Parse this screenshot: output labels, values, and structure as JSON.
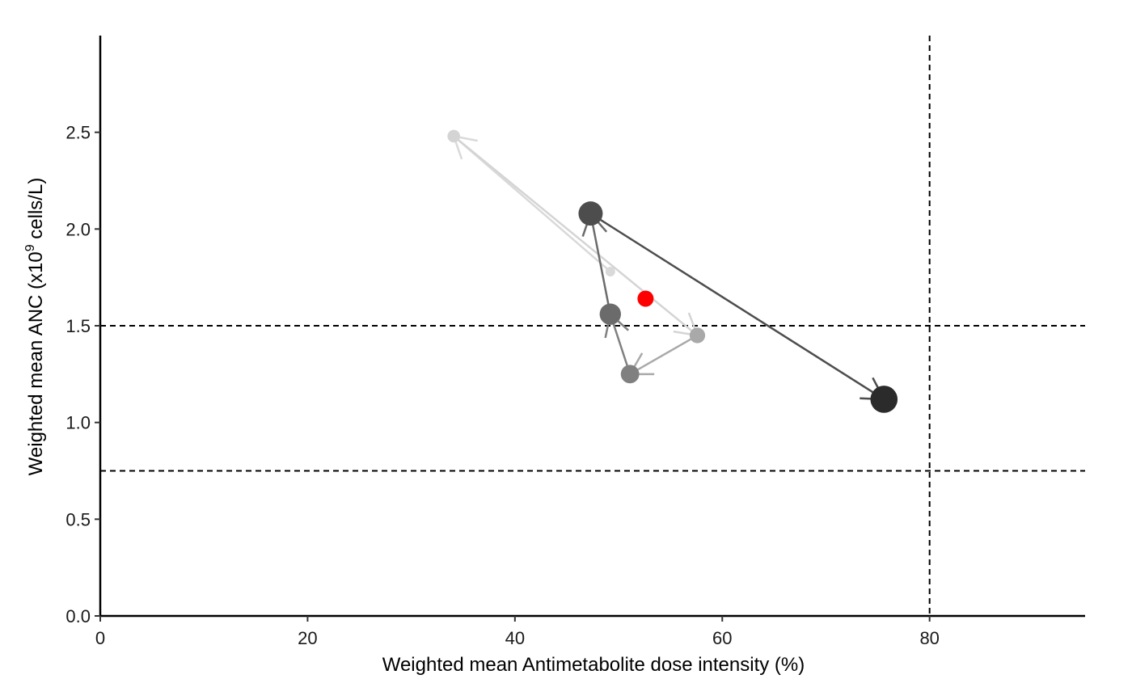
{
  "chart_data": {
    "type": "scatter",
    "xlabel": "Weighted mean Antimetabolite dose intensity (%)",
    "ylabel_parts": {
      "before": "Weighted mean ANC (x10",
      "sup": "9",
      "after": " cells/L)"
    },
    "xlim": [
      0,
      95
    ],
    "ylim": [
      0,
      3.0
    ],
    "x_ticks": [
      0,
      20,
      40,
      60,
      80
    ],
    "y_ticks": [
      0.0,
      0.5,
      1.0,
      1.5,
      2.0,
      2.5
    ],
    "y_tick_labels": [
      "0.0",
      "0.5",
      "1.0",
      "1.5",
      "2.0",
      "2.5"
    ],
    "reference_lines": {
      "horizontal": [
        0.75,
        1.5
      ],
      "vertical": [
        80
      ]
    },
    "points": [
      {
        "x": 49.2,
        "y": 1.78,
        "size": 1,
        "color": "#d9d9d9"
      },
      {
        "x": 34.1,
        "y": 2.48,
        "size": 2,
        "color": "#d4d4d4"
      },
      {
        "x": 57.6,
        "y": 1.45,
        "size": 3,
        "color": "#a9a9a9"
      },
      {
        "x": 51.1,
        "y": 1.25,
        "size": 4,
        "color": "#808080"
      },
      {
        "x": 49.2,
        "y": 1.56,
        "size": 5,
        "color": "#6b6b6b"
      },
      {
        "x": 47.3,
        "y": 2.08,
        "size": 6,
        "color": "#4d4d4d"
      },
      {
        "x": 75.6,
        "y": 1.12,
        "size": 7,
        "color": "#2b2b2b"
      }
    ],
    "highlight_point": {
      "x": 52.6,
      "y": 1.64,
      "color": "#ff0000"
    },
    "arrows": [
      {
        "from": [
          49.2,
          1.78
        ],
        "to": [
          34.1,
          2.48
        ],
        "color": "#d9d9d9"
      },
      {
        "from": [
          34.1,
          2.48
        ],
        "to": [
          57.6,
          1.45
        ],
        "color": "#d4d4d4"
      },
      {
        "from": [
          57.6,
          1.45
        ],
        "to": [
          51.1,
          1.25
        ],
        "color": "#a9a9a9"
      },
      {
        "from": [
          51.1,
          1.25
        ],
        "to": [
          49.2,
          1.56
        ],
        "color": "#808080"
      },
      {
        "from": [
          49.2,
          1.56
        ],
        "to": [
          47.3,
          2.08
        ],
        "color": "#6b6b6b"
      },
      {
        "from": [
          47.3,
          2.08
        ],
        "to": [
          75.6,
          1.12
        ],
        "color": "#4d4d4d"
      }
    ],
    "grid": false,
    "legend": "none"
  }
}
